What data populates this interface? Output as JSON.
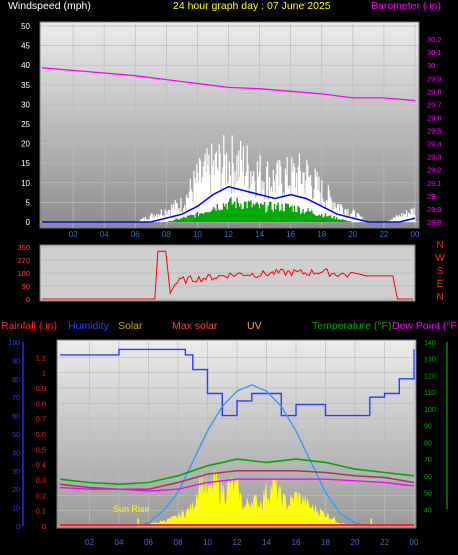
{
  "header": {
    "left": "Windspeed (mph)",
    "center": "24 hour graph day : 07 June 2025",
    "right": "Barometer (.in)"
  },
  "legend2": {
    "rainfall": "Rainfall (.in)",
    "humidity": "Humidity",
    "solar": "Solar",
    "maxsolar": "Max solar",
    "uv": "UV",
    "temperature": "Temperature (°F)",
    "dewpoint": "Dew Point (°F"
  },
  "sunrise_label": "Sun Rise",
  "colors": {
    "windspeed": "#ffffff",
    "windavg": "#0000ff",
    "windgreen": "#00aa00",
    "barometer": "#ff00ff",
    "direction": "#ff0000",
    "humidity": "#2a3cff",
    "solar": "#ffff00",
    "maxsolar": "#ff4040",
    "uv": "#3399ff",
    "temperature": "#00aa00",
    "dewpoint": "#ff00ff",
    "rainfall": "#ff2020"
  },
  "chart_data": [
    {
      "type": "line",
      "title": "24 hour graph day : 07 June 2025",
      "ylabel": "Windspeed (mph)",
      "y2label": "Barometer (.in)",
      "ylim": [
        0,
        50
      ],
      "y2lim": [
        28.8,
        30.3
      ],
      "xlim": [
        0,
        24
      ],
      "xticks": [
        "02",
        "04",
        "06",
        "08",
        "10",
        "12",
        "14",
        "16",
        "18",
        "20",
        "22",
        "00"
      ],
      "yticks": [
        "0",
        "5",
        "10",
        "15",
        "20",
        "25",
        "30",
        "35",
        "40",
        "45",
        "50"
      ],
      "y2ticks": [
        "28.8",
        "28.9",
        "29",
        "29.1",
        "29.2",
        "29.3",
        "29.4",
        "29.5",
        "29.6",
        "29.7",
        "29.8",
        "29.9",
        "30",
        "30.1",
        "30.2"
      ],
      "series": [
        {
          "key": "gust",
          "x": [
            0,
            1,
            2,
            3,
            4,
            5,
            6,
            7,
            8,
            9,
            10,
            11,
            12,
            13,
            14,
            15,
            16,
            17,
            18,
            19,
            20,
            21,
            22,
            23,
            24
          ],
          "values": [
            0,
            0,
            0,
            0,
            0,
            0,
            0,
            2,
            4,
            6,
            14,
            18,
            20,
            19,
            16,
            14,
            15,
            16,
            10,
            6,
            3,
            0,
            0,
            2,
            4
          ]
        },
        {
          "key": "avg",
          "x": [
            0,
            1,
            2,
            3,
            4,
            5,
            6,
            7,
            8,
            9,
            10,
            11,
            12,
            13,
            14,
            15,
            16,
            17,
            18,
            19,
            20,
            21,
            22,
            23,
            24
          ],
          "values": [
            0,
            0,
            0,
            0,
            0,
            0,
            0,
            0,
            1,
            2,
            4,
            7,
            9,
            8,
            7,
            6,
            7,
            6,
            4,
            2,
            1,
            0,
            0,
            0,
            1
          ]
        },
        {
          "key": "low",
          "x": [
            0,
            1,
            2,
            3,
            4,
            5,
            6,
            7,
            8,
            9,
            10,
            11,
            12,
            13,
            14,
            15,
            16,
            17,
            18,
            19,
            20,
            21,
            22,
            23,
            24
          ],
          "values": [
            0,
            0,
            0,
            0,
            0,
            0,
            0,
            0,
            0,
            1,
            2,
            4,
            5,
            5,
            4,
            4,
            4,
            3,
            2,
            1,
            0,
            0,
            0,
            0,
            0
          ]
        },
        {
          "key": "barometer",
          "x": [
            0,
            2,
            4,
            6,
            8,
            10,
            12,
            14,
            16,
            18,
            20,
            22,
            24
          ],
          "values": [
            29.98,
            29.96,
            29.94,
            29.92,
            29.89,
            29.86,
            29.83,
            29.82,
            29.8,
            29.78,
            29.75,
            29.75,
            29.73
          ]
        }
      ]
    },
    {
      "type": "line",
      "ylim": [
        0,
        360
      ],
      "yticks": [
        "0",
        "90",
        "180",
        "270",
        "360"
      ],
      "compass": [
        "N",
        "W",
        "S",
        "E",
        "N"
      ],
      "series": [
        {
          "key": "direction",
          "x": [
            0,
            7.3,
            7.5,
            8,
            8.3,
            8.6,
            9,
            10,
            11,
            12,
            13,
            14,
            15,
            16,
            17,
            18,
            19,
            20,
            21,
            22,
            22.7,
            23,
            24
          ],
          "values": [
            0,
            0,
            330,
            330,
            40,
            100,
            130,
            140,
            150,
            165,
            175,
            170,
            180,
            185,
            180,
            190,
            175,
            165,
            160,
            160,
            160,
            0,
            0
          ]
        }
      ]
    },
    {
      "type": "line",
      "ylabel": "Rainfall (.in)",
      "ylim": [
        0,
        1.2
      ],
      "humidity_lim": [
        0,
        100
      ],
      "temp_lim": [
        30,
        140
      ],
      "yticks_rain": [
        "0",
        "0.1",
        "0.2",
        "0.3",
        "0.4",
        "0.5",
        "0.6",
        "0.7",
        "0.8",
        "0.9",
        "1",
        "1.1"
      ],
      "yticks_hum": [
        "0",
        "10",
        "20",
        "30",
        "40",
        "50",
        "60",
        "70",
        "80",
        "90",
        "100"
      ],
      "yticks_temp": [
        "40",
        "50",
        "60",
        "70",
        "80",
        "90",
        "100",
        "110",
        "120",
        "130",
        "140"
      ],
      "xticks": [
        "02",
        "04",
        "06",
        "08",
        "10",
        "12",
        "14",
        "16",
        "18",
        "20",
        "22",
        "00"
      ],
      "series": [
        {
          "key": "humidity",
          "x": [
            0,
            2,
            4,
            6,
            8,
            8.5,
            9,
            10,
            11,
            12,
            13,
            14,
            15,
            16,
            17,
            18,
            19,
            20,
            21,
            22,
            23,
            24
          ],
          "values": [
            93,
            93,
            96,
            96,
            96,
            93,
            85,
            72,
            60,
            68,
            72,
            72,
            60,
            66,
            66,
            60,
            60,
            60,
            70,
            72,
            80,
            96
          ]
        },
        {
          "key": "uv",
          "x": [
            5,
            6,
            7,
            8,
            9,
            10,
            11,
            12,
            13,
            14,
            15,
            16,
            17,
            18,
            19,
            20,
            21
          ],
          "values": [
            0,
            0.02,
            0.1,
            0.22,
            0.42,
            0.62,
            0.78,
            0.88,
            0.92,
            0.88,
            0.78,
            0.62,
            0.42,
            0.22,
            0.08,
            0.02,
            0
          ]
        },
        {
          "key": "temperature",
          "x": [
            0,
            2,
            4,
            6,
            8,
            10,
            12,
            14,
            16,
            18,
            20,
            22,
            24
          ],
          "values": [
            58,
            56,
            55,
            56,
            60,
            66,
            70,
            68,
            70,
            68,
            64,
            62,
            60
          ]
        },
        {
          "key": "maxsolar",
          "x": [
            0,
            2,
            4,
            6,
            8,
            10,
            12,
            14,
            16,
            18,
            20,
            22,
            24
          ],
          "values": [
            55,
            53,
            52,
            52,
            56,
            61,
            63,
            63,
            63,
            62,
            60,
            59,
            56
          ]
        },
        {
          "key": "dewpoint",
          "x": [
            0,
            2,
            4,
            6,
            8,
            10,
            12,
            14,
            16,
            18,
            20,
            22,
            24
          ],
          "values": [
            53,
            52,
            52,
            51,
            52,
            56,
            58,
            58,
            58,
            58,
            57,
            56,
            54
          ]
        },
        {
          "key": "solar",
          "x": [
            5,
            6,
            7,
            8,
            9,
            9.5,
            10,
            10.5,
            11,
            11.5,
            12,
            12.5,
            13,
            13.5,
            14,
            14.5,
            15,
            15.5,
            16,
            16.5,
            17,
            17.5,
            18,
            18.5,
            19,
            20
          ],
          "values": [
            0,
            0.01,
            0.03,
            0.06,
            0.12,
            0.3,
            0.2,
            0.28,
            0.22,
            0.26,
            0.24,
            0.12,
            0.18,
            0.14,
            0.22,
            0.26,
            0.18,
            0.14,
            0.2,
            0.16,
            0.12,
            0.1,
            0.08,
            0.05,
            0.02,
            0
          ]
        }
      ]
    }
  ]
}
